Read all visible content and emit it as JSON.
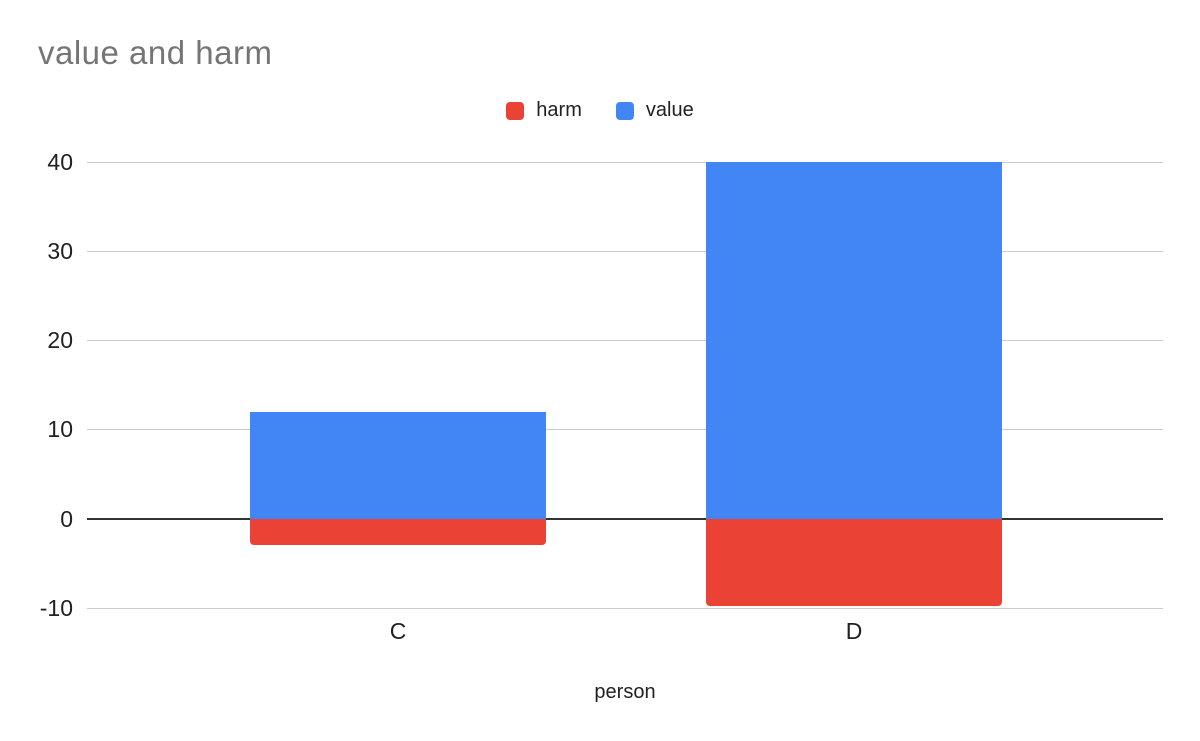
{
  "chart": {
    "title": "value and harm",
    "xlabel": "person"
  },
  "chart_data": {
    "type": "bar",
    "subtype": "stacked-column",
    "title": "value and harm",
    "xlabel": "person",
    "ylabel": "",
    "categories": [
      "C",
      "D"
    ],
    "series": [
      {
        "name": "harm",
        "color": "#EA4335",
        "values": [
          -3,
          -9.8
        ]
      },
      {
        "name": "value",
        "color": "#4285F4",
        "values": [
          12,
          40
        ]
      }
    ],
    "legend": [
      "harm",
      "value"
    ],
    "legend_position": "top",
    "ylim": [
      -10,
      40
    ],
    "yticks": [
      -10,
      0,
      10,
      20,
      30,
      40
    ],
    "grid": true,
    "zero_line": true
  },
  "colors": {
    "harm": "#EA4335",
    "value": "#4285F4",
    "title_text": "#757575",
    "axis_text": "#212121",
    "gridline": "#cccccc",
    "zero_line": "#333333",
    "background": "#ffffff"
  }
}
